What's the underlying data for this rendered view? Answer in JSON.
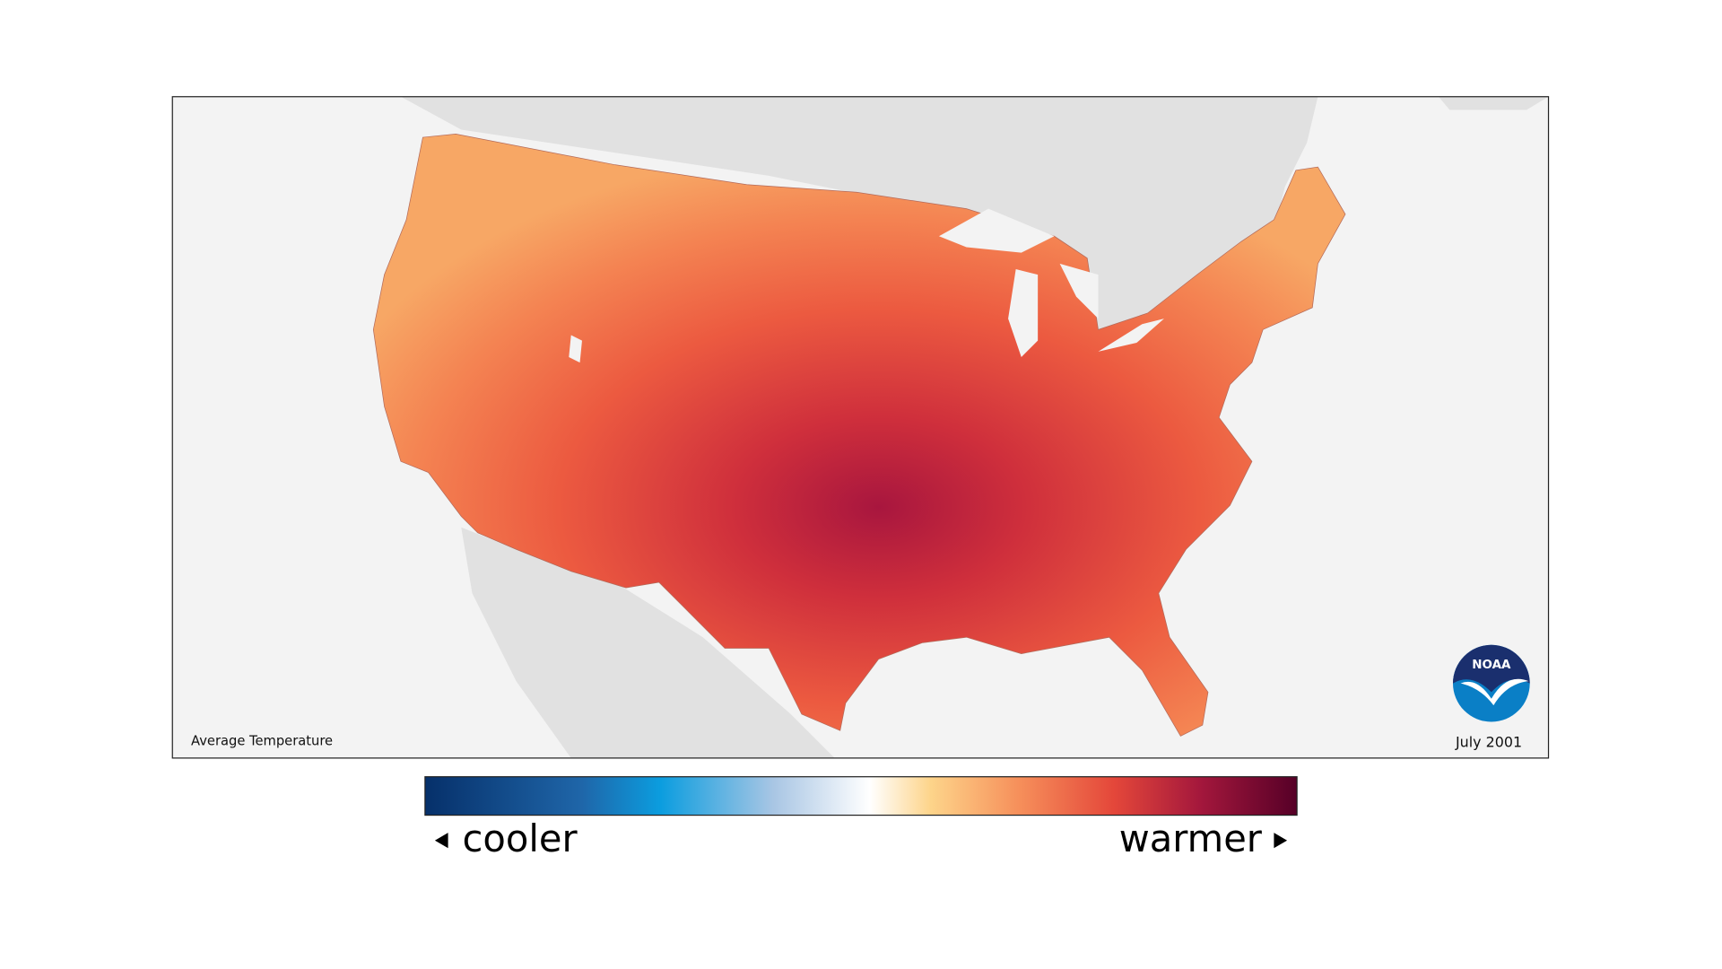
{
  "map": {
    "caption": "Average Temperature",
    "date": "July 2001",
    "logo": "NOAA"
  },
  "legend": {
    "low_label": "cooler",
    "high_label": "warmer"
  }
}
